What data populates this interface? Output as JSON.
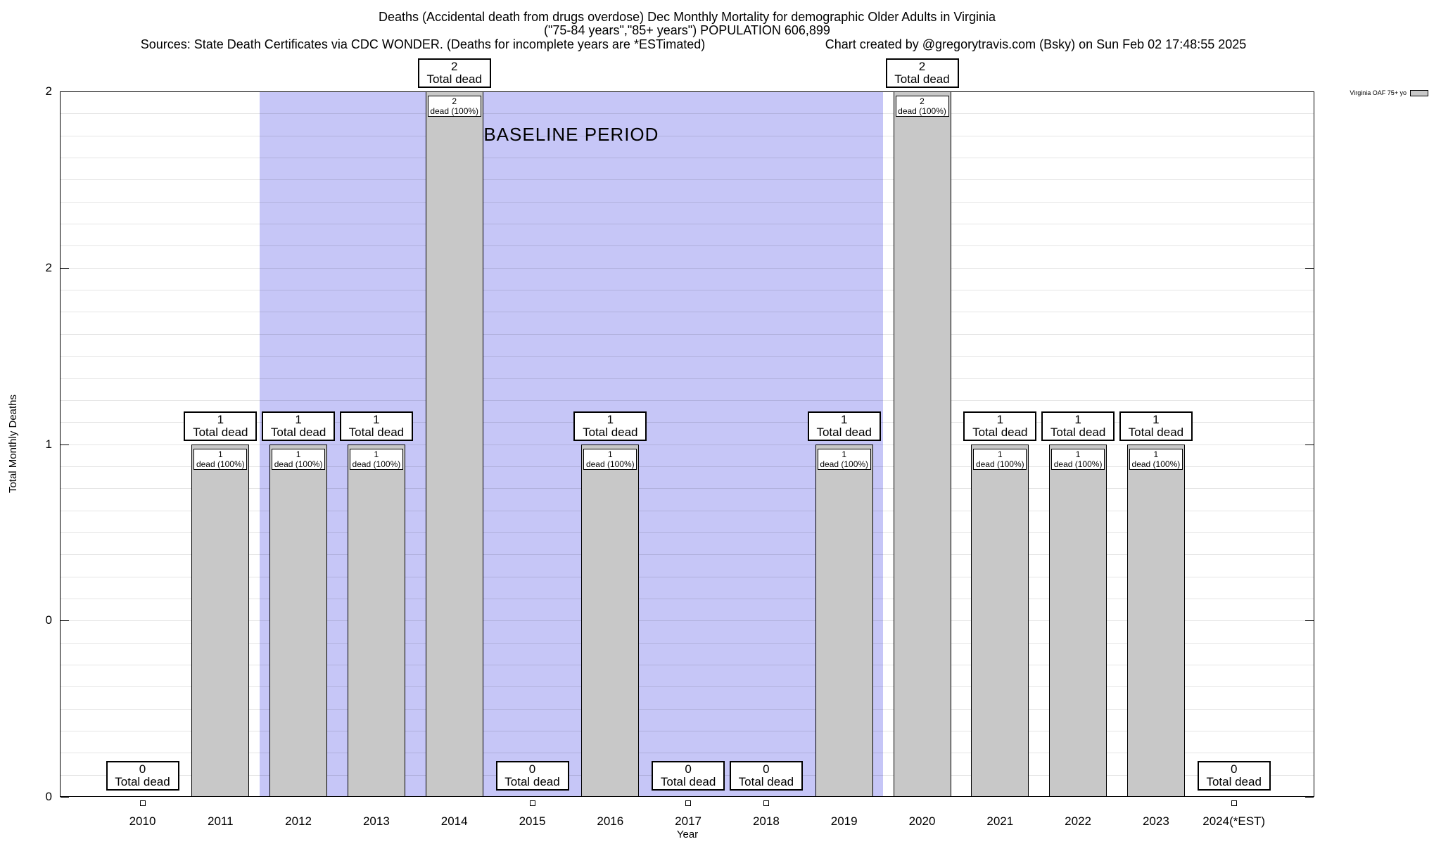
{
  "header": {
    "line1": "Deaths (Accidental death from drugs overdose) Dec Monthly Mortality for demographic Older Adults in Virginia",
    "line2": "(\"75-84 years\",\"85+ years\") POPULATION 606,899",
    "sources": "Sources: State Death Certificates via CDC WONDER. (Deaths for incomplete years are *ESTimated)",
    "credit": "Chart created by @gregorytravis.com (Bsky) on Sun Feb 02 17:48:55 2025"
  },
  "legend": {
    "label": "Virginia OAF 75+ yo"
  },
  "labels": {
    "total_dead": "Total dead",
    "dead_pct": "dead (100%)"
  },
  "chart_data": {
    "type": "bar",
    "title": "Deaths (Accidental death from drugs overdose) Dec Monthly Mortality for demographic Older Adults in Virginia",
    "subtitle": "(\"75-84 years\",\"85+ years\") POPULATION 606,899",
    "categories": [
      "2010",
      "2011",
      "2012",
      "2013",
      "2014",
      "2015",
      "2016",
      "2017",
      "2018",
      "2019",
      "2020",
      "2021",
      "2022",
      "2023",
      "2024(*EST)"
    ],
    "values": [
      0,
      1,
      1,
      1,
      2,
      0,
      1,
      0,
      0,
      1,
      2,
      1,
      1,
      1,
      0
    ],
    "xlabel": "Year",
    "ylabel": "Total Monthly Deaths",
    "ylim": [
      0,
      2
    ],
    "grid": true,
    "legend_position": "top-right",
    "bar_color": "#c8c8c8",
    "y_ticks": {
      "values": [
        0,
        0.5,
        1,
        1.5,
        2
      ],
      "labels": [
        "0",
        "0",
        "1",
        "2",
        "2"
      ]
    },
    "baseline_period": {
      "label": "BASELINE PERIOD",
      "start_category": "2012",
      "end_category": "2019",
      "color": "#c6c6f7"
    }
  }
}
